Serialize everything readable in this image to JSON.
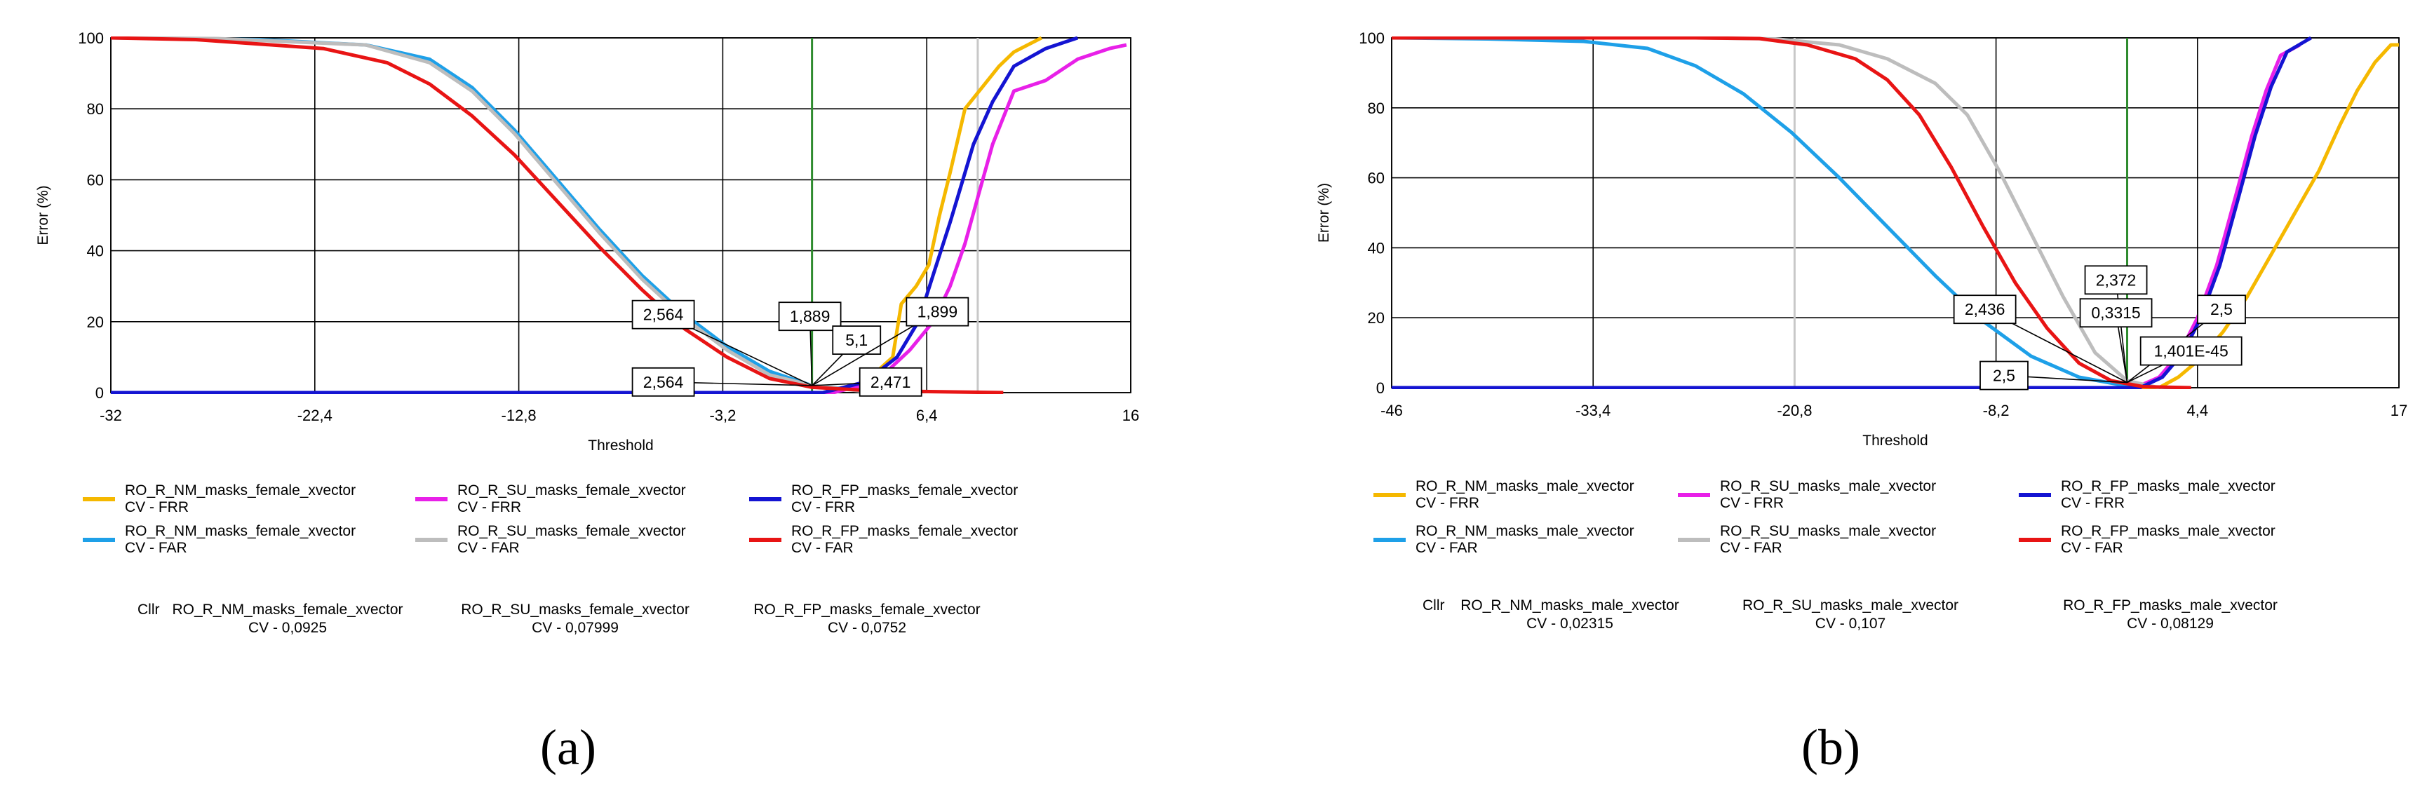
{
  "chart_data": [
    {
      "type": "line",
      "panel_label": "(a)",
      "xlabel": "Threshold",
      "ylabel": "Error (%)",
      "xlim": [
        -32,
        16
      ],
      "ylim": [
        0,
        100
      ],
      "x_ticks": [
        "-32",
        "-22,4",
        "-12,8",
        "-3,2",
        "6,4",
        "16"
      ],
      "y_ticks": [
        "0",
        "20",
        "40",
        "60",
        "80",
        "100"
      ],
      "grid": true,
      "vertical_markers": [
        {
          "x": 1.0,
          "color": "#2e8b2e"
        },
        {
          "x": 8.8,
          "color": "#c8c8c8"
        }
      ],
      "series": [
        {
          "name": "RO_R_NM_masks_female_xvector\nCV - FRR",
          "color": "#f5b800",
          "points": [
            [
              -32,
              0
            ],
            [
              1.5,
              0
            ],
            [
              3.5,
              3
            ],
            [
              4.8,
              10
            ],
            [
              5.2,
              25
            ],
            [
              5.9,
              30
            ],
            [
              6.5,
              36
            ],
            [
              7.0,
              50
            ],
            [
              7.5,
              62
            ],
            [
              8.2,
              80
            ],
            [
              9.0,
              86
            ],
            [
              9.8,
              92
            ],
            [
              10.5,
              96
            ],
            [
              11.8,
              100
            ]
          ]
        },
        {
          "name": "RO_R_NM_masks_female_xvector\nCV - FAR",
          "color": "#1ea0e8",
          "points": [
            [
              -32,
              100
            ],
            [
              -25,
              99.5
            ],
            [
              -20,
              98
            ],
            [
              -17,
              94
            ],
            [
              -15,
              86
            ],
            [
              -13,
              74
            ],
            [
              -11,
              60
            ],
            [
              -9,
              46
            ],
            [
              -7,
              33
            ],
            [
              -5,
              22
            ],
            [
              -3,
              13
            ],
            [
              -1,
              6
            ],
            [
              1,
              2
            ],
            [
              3,
              0.8
            ],
            [
              6,
              0
            ]
          ]
        },
        {
          "name": "RO_R_SU_masks_female_xvector\nCV - FRR",
          "color": "#e820e8",
          "points": [
            [
              -32,
              0
            ],
            [
              2,
              0
            ],
            [
              4,
              3
            ],
            [
              5.6,
              12
            ],
            [
              6.7,
              20
            ],
            [
              7.5,
              30
            ],
            [
              8.2,
              42
            ],
            [
              8.8,
              55
            ],
            [
              9.5,
              70
            ],
            [
              10.5,
              85
            ],
            [
              12,
              88
            ],
            [
              13.5,
              94
            ],
            [
              15,
              97
            ],
            [
              15.8,
              98
            ]
          ]
        },
        {
          "name": "RO_R_SU_masks_female_xvector\nCV - FAR",
          "color": "#bdbdbd",
          "points": [
            [
              -32,
              100
            ],
            [
              -27,
              99.8
            ],
            [
              -20,
              98
            ],
            [
              -17,
              93
            ],
            [
              -15,
              85
            ],
            [
              -13,
              73
            ],
            [
              -11,
              59
            ],
            [
              -9,
              45
            ],
            [
              -7,
              32
            ],
            [
              -5,
              21
            ],
            [
              -3,
              12
            ],
            [
              -1,
              5
            ],
            [
              1,
              2
            ],
            [
              4,
              0
            ]
          ]
        },
        {
          "name": "RO_R_FP_masks_female_xvector\nCV - FRR",
          "color": "#1414d2",
          "points": [
            [
              -32,
              0
            ],
            [
              1.5,
              0
            ],
            [
              3.5,
              3
            ],
            [
              5,
              10
            ],
            [
              6,
              20
            ],
            [
              6.8,
              35
            ],
            [
              7.5,
              48
            ],
            [
              8,
              58
            ],
            [
              8.6,
              70
            ],
            [
              9.5,
              82
            ],
            [
              10.5,
              92
            ],
            [
              12,
              97
            ],
            [
              13.5,
              100
            ]
          ]
        },
        {
          "name": "RO_R_FP_masks_female_xvector\nCV - FAR",
          "color": "#e81414",
          "points": [
            [
              -32,
              100
            ],
            [
              -28,
              99.5
            ],
            [
              -22,
              97
            ],
            [
              -19,
              93
            ],
            [
              -17,
              87
            ],
            [
              -15,
              78
            ],
            [
              -13,
              67
            ],
            [
              -11,
              54
            ],
            [
              -9,
              41
            ],
            [
              -7,
              29
            ],
            [
              -5,
              18
            ],
            [
              -3,
              10
            ],
            [
              -1,
              4
            ],
            [
              1,
              1.5
            ],
            [
              4,
              0.5
            ],
            [
              10,
              0
            ]
          ]
        }
      ],
      "callouts": [
        {
          "label": "2,564",
          "box": [
            -6.0,
            22
          ],
          "target": [
            1.0,
            2
          ]
        },
        {
          "label": "1,889",
          "box": [
            0.9,
            21.5
          ],
          "target": [
            1.0,
            2
          ]
        },
        {
          "label": "5,1",
          "box": [
            3.1,
            14.8
          ],
          "target": [
            1.0,
            2
          ]
        },
        {
          "label": "1,899",
          "box": [
            6.9,
            22.8
          ],
          "target": [
            1.0,
            2
          ]
        },
        {
          "label": "2,564",
          "box": [
            -6.0,
            3
          ],
          "target": [
            1.0,
            2
          ]
        },
        {
          "label": "2,471",
          "box": [
            4.7,
            3
          ],
          "target": [
            1.0,
            2
          ]
        }
      ],
      "legend": {
        "entries": [
          "RO_R_NM_masks_female_xvector\nCV - FRR",
          "RO_R_SU_masks_female_xvector\nCV - FRR",
          "RO_R_FP_masks_female_xvector\nCV - FRR",
          "RO_R_NM_masks_female_xvector\nCV - FAR",
          "RO_R_SU_masks_female_xvector\nCV - FAR",
          "RO_R_FP_masks_female_xvector\nCV - FAR"
        ],
        "placement": "bottom"
      },
      "cllr": {
        "label": "Cllr",
        "items": [
          {
            "line1": "RO_R_NM_masks_female_xvector",
            "line2": "CV - 0,0925"
          },
          {
            "line1": "RO_R_SU_masks_female_xvector",
            "line2": "CV - 0,07999"
          },
          {
            "line1": "RO_R_FP_masks_female_xvector",
            "line2": "CV - 0,0752"
          }
        ]
      }
    },
    {
      "type": "line",
      "panel_label": "(b)",
      "xlabel": "Threshold",
      "ylabel": "Error (%)",
      "xlim": [
        -46,
        17
      ],
      "ylim": [
        0,
        100
      ],
      "x_ticks": [
        "-46",
        "-33,4",
        "-20,8",
        "-8,2",
        "4,4",
        "17"
      ],
      "y_ticks": [
        "0",
        "20",
        "40",
        "60",
        "80",
        "100"
      ],
      "grid": true,
      "vertical_markers": [
        {
          "x": -20.8,
          "color": "#c8c8c8"
        },
        {
          "x": 0,
          "color": "#2e8b2e"
        }
      ],
      "series": [
        {
          "name": "RO_R_NM_masks_male_xvector\nCV - FRR",
          "color": "#f5b800",
          "points": [
            [
              -46,
              0
            ],
            [
              2,
              0
            ],
            [
              3.2,
              3
            ],
            [
              4.5,
              8
            ],
            [
              6,
              16
            ],
            [
              7.5,
              26
            ],
            [
              9,
              38
            ],
            [
              10.5,
              50
            ],
            [
              12,
              62
            ],
            [
              13.3,
              75
            ],
            [
              14.4,
              85
            ],
            [
              15.5,
              93
            ],
            [
              16.5,
              98
            ],
            [
              17,
              98
            ]
          ]
        },
        {
          "name": "RO_R_NM_masks_male_xvector\nCV - FAR",
          "color": "#1ea0e8",
          "points": [
            [
              -46,
              100
            ],
            [
              -40,
              99.7
            ],
            [
              -34,
              99
            ],
            [
              -30,
              97
            ],
            [
              -27,
              92
            ],
            [
              -24,
              84
            ],
            [
              -21,
              73
            ],
            [
              -18,
              60
            ],
            [
              -15,
              46
            ],
            [
              -12,
              32
            ],
            [
              -9,
              19
            ],
            [
              -6,
              9
            ],
            [
              -3,
              3
            ],
            [
              0,
              0.5
            ],
            [
              3,
              0
            ]
          ]
        },
        {
          "name": "RO_R_SU_masks_male_xvector\nCV - FRR",
          "color": "#e820e8",
          "points": [
            [
              -46,
              0
            ],
            [
              0.5,
              0
            ],
            [
              2,
              3
            ],
            [
              3.3,
              10
            ],
            [
              4.4,
              20
            ],
            [
              5.6,
              35
            ],
            [
              6.8,
              55
            ],
            [
              7.8,
              72
            ],
            [
              8.7,
              85
            ],
            [
              9.6,
              95
            ],
            [
              10.8,
              98
            ]
          ]
        },
        {
          "name": "RO_R_SU_masks_male_xvector\nCV - FAR",
          "color": "#bdbdbd",
          "points": [
            [
              -46,
              100
            ],
            [
              -27,
              100
            ],
            [
              -22,
              99.7
            ],
            [
              -18,
              98
            ],
            [
              -15,
              94
            ],
            [
              -12,
              87
            ],
            [
              -10,
              78
            ],
            [
              -8,
              62
            ],
            [
              -6,
              44
            ],
            [
              -4,
              26
            ],
            [
              -2,
              10
            ],
            [
              0,
              2
            ],
            [
              2,
              0
            ]
          ]
        },
        {
          "name": "RO_R_FP_masks_male_xvector\nCV - FRR",
          "color": "#1414d2",
          "points": [
            [
              -46,
              0
            ],
            [
              0.8,
              0
            ],
            [
              2.2,
              3
            ],
            [
              3.5,
              10
            ],
            [
              4.6,
              20
            ],
            [
              5.8,
              35
            ],
            [
              7,
              55
            ],
            [
              8,
              72
            ],
            [
              9,
              86
            ],
            [
              10,
              96
            ],
            [
              11.5,
              100
            ]
          ]
        },
        {
          "name": "RO_R_FP_masks_male_xvector\nCV - FAR",
          "color": "#e81414",
          "points": [
            [
              -46,
              100
            ],
            [
              -27,
              100
            ],
            [
              -23,
              99.8
            ],
            [
              -20,
              98
            ],
            [
              -17,
              94
            ],
            [
              -15,
              88
            ],
            [
              -13,
              78
            ],
            [
              -11,
              63
            ],
            [
              -9,
              46
            ],
            [
              -7,
              30
            ],
            [
              -5,
              17
            ],
            [
              -3,
              7
            ],
            [
              -1,
              2
            ],
            [
              1,
              0.3
            ],
            [
              4,
              0
            ]
          ]
        }
      ],
      "callouts": [
        {
          "label": "2,436",
          "box": [
            -8.9,
            22.4
          ],
          "target": [
            0,
            1.5
          ]
        },
        {
          "label": "2,372",
          "box": [
            -0.7,
            30.8
          ],
          "target": [
            0,
            1.5
          ]
        },
        {
          "label": "0,3315",
          "box": [
            -0.7,
            21.4
          ],
          "target": [
            0,
            1.5
          ]
        },
        {
          "label": "2,5",
          "box": [
            5.9,
            22.4
          ],
          "target": [
            0,
            1.5
          ]
        },
        {
          "label": "2,5",
          "box": [
            -7.7,
            3.5
          ],
          "target": [
            0,
            1.5
          ]
        },
        {
          "label": "1,401E-45",
          "box": [
            4.0,
            10.5
          ],
          "target": [
            0,
            1.5
          ]
        }
      ],
      "legend": {
        "entries": [
          "RO_R_NM_masks_male_xvector\nCV - FRR",
          "RO_R_SU_masks_male_xvector\nCV - FRR",
          "RO_R_FP_masks_male_xvector\nCV - FRR",
          "RO_R_NM_masks_male_xvector\nCV - FAR",
          "RO_R_SU_masks_male_xvector\nCV - FAR",
          "RO_R_FP_masks_male_xvector\nCV - FAR"
        ],
        "placement": "bottom"
      },
      "cllr": {
        "label": "Cllr",
        "items": [
          {
            "line1": "RO_R_NM_masks_male_xvector",
            "line2": "CV - 0,02315"
          },
          {
            "line1": "RO_R_SU_masks_male_xvector",
            "line2": "CV - 0,107"
          },
          {
            "line1": "RO_R_FP_masks_male_xvector",
            "line2": "CV - 0,08129"
          }
        ]
      }
    }
  ]
}
